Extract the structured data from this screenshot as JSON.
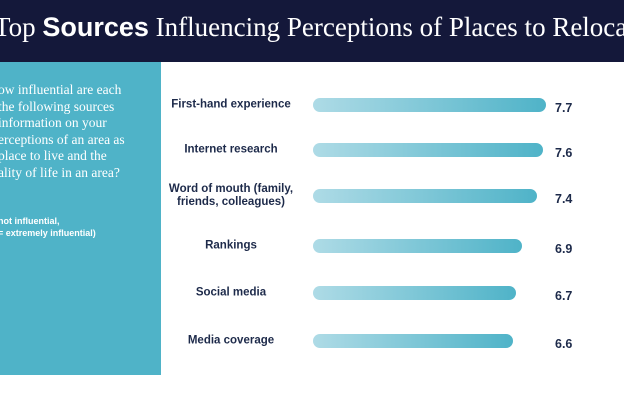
{
  "header": {
    "title_pre": "Top",
    "title_bold": "Sources",
    "title_post": "Influencing Perceptions of Places to Relocat"
  },
  "sidebar": {
    "question": [
      "ow influential are each",
      "the following sources",
      "information on your",
      "erceptions of an area as",
      "place to live and the",
      "ality of life in an area?"
    ],
    "scale_note": [
      "not influential,",
      "= extremely influential)"
    ]
  },
  "chart_data": {
    "type": "bar",
    "orientation": "horizontal",
    "categories": [
      "First-hand experience",
      "Internet research",
      "Word of mouth (family, friends, colleagues)",
      "Rankings",
      "Social media",
      "Media coverage"
    ],
    "values": [
      7.7,
      7.6,
      7.4,
      6.9,
      6.7,
      6.6
    ],
    "xlim": [
      0,
      8
    ],
    "color": [
      "#aedbe6",
      "#4fb3c8"
    ]
  }
}
